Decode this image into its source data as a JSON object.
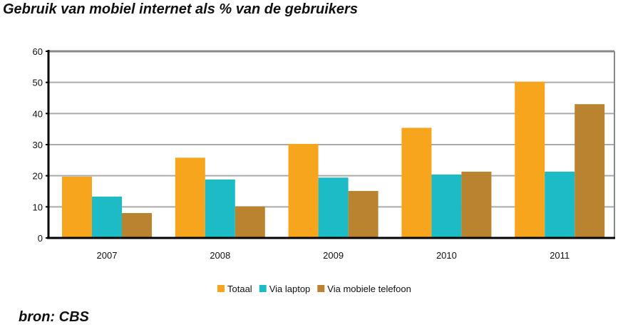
{
  "chart_data": {
    "type": "bar",
    "title": "Gebruik van mobiel internet als % van de gebruikers",
    "xlabel": "",
    "ylabel": "",
    "categories": [
      "2007",
      "2008",
      "2009",
      "2010",
      "2011"
    ],
    "series": [
      {
        "name": "Totaal",
        "color": "#F7A51D",
        "values": [
          19.7,
          25.8,
          30.2,
          35.4,
          50.2
        ]
      },
      {
        "name": "Via laptop",
        "color": "#1DBBC6",
        "values": [
          13.3,
          18.8,
          19.4,
          20.4,
          21.3
        ]
      },
      {
        "name": "Via mobiele telefoon",
        "color": "#B98330",
        "values": [
          8.0,
          10.1,
          15.1,
          21.3,
          43.0
        ]
      }
    ],
    "ylim": [
      0,
      60
    ],
    "yticks": [
      0,
      10,
      20,
      30,
      40,
      50,
      60
    ],
    "grid": true,
    "legend_position": "bottom"
  },
  "source": "bron: CBS"
}
